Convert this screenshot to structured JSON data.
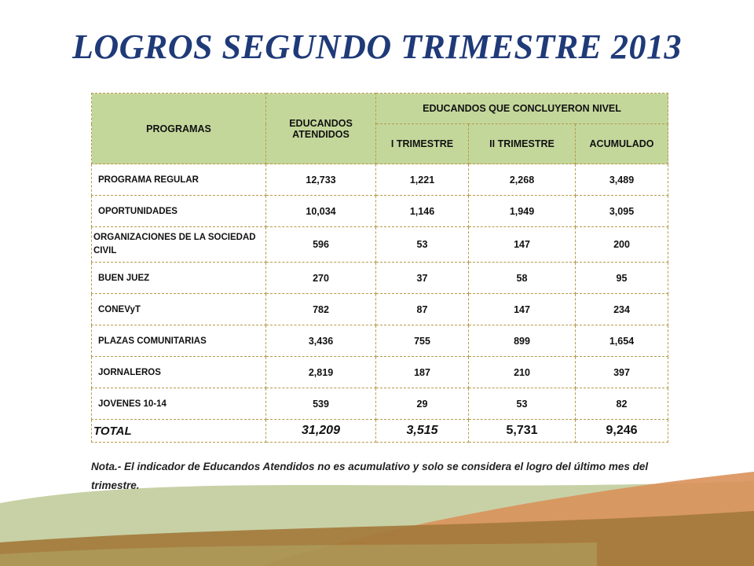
{
  "title": "LOGROS SEGUNDO TRIMESTRE 2013",
  "table": {
    "headers": {
      "programas": "PROGRAMAS",
      "atendidos": "EDUCANDOS ATENDIDOS",
      "concluyeron": "EDUCANDOS QUE CONCLUYERON NIVEL",
      "t1": "I TRIMESTRE",
      "t2": "II TRIMESTRE",
      "acumulado": "ACUMULADO"
    },
    "rows": [
      {
        "programa": "PROGRAMA REGULAR",
        "atendidos": "12,733",
        "t1": "1,221",
        "t2": "2,268",
        "acumulado": "3,489"
      },
      {
        "programa": "OPORTUNIDADES",
        "atendidos": "10,034",
        "t1": "1,146",
        "t2": "1,949",
        "acumulado": "3,095"
      },
      {
        "programa": "ORGANIZACIONES DE LA SOCIEDAD CIVIL",
        "atendidos": "596",
        "t1": "53",
        "t2": "147",
        "acumulado": "200"
      },
      {
        "programa": "BUEN JUEZ",
        "atendidos": "270",
        "t1": "37",
        "t2": "58",
        "acumulado": "95"
      },
      {
        "programa": "CONEVyT",
        "atendidos": "782",
        "t1": "87",
        "t2": "147",
        "acumulado": "234"
      },
      {
        "programa": "PLAZAS COMUNITARIAS",
        "atendidos": "3,436",
        "t1": "755",
        "t2": "899",
        "acumulado": "1,654"
      },
      {
        "programa": "JORNALEROS",
        "atendidos": "2,819",
        "t1": "187",
        "t2": "210",
        "acumulado": "397"
      },
      {
        "programa": "JOVENES 10-14",
        "atendidos": "539",
        "t1": "29",
        "t2": "53",
        "acumulado": "82"
      }
    ],
    "total": {
      "programa": "TOTAL",
      "atendidos": "31,209",
      "t1": "3,515",
      "t2": "5,731",
      "acumulado": "9,246"
    }
  },
  "nota": "Nota.- El indicador de Educandos Atendidos no es acumulativo y solo se considera  el logro del último mes del trimestre.",
  "colors": {
    "title": "#1f3a78",
    "header_fill": "#c4d79b",
    "border": "#b59a4a",
    "wave_green": "#9aab5c",
    "wave_orange": "#d9915a",
    "wave_brown": "#a47a3c"
  }
}
